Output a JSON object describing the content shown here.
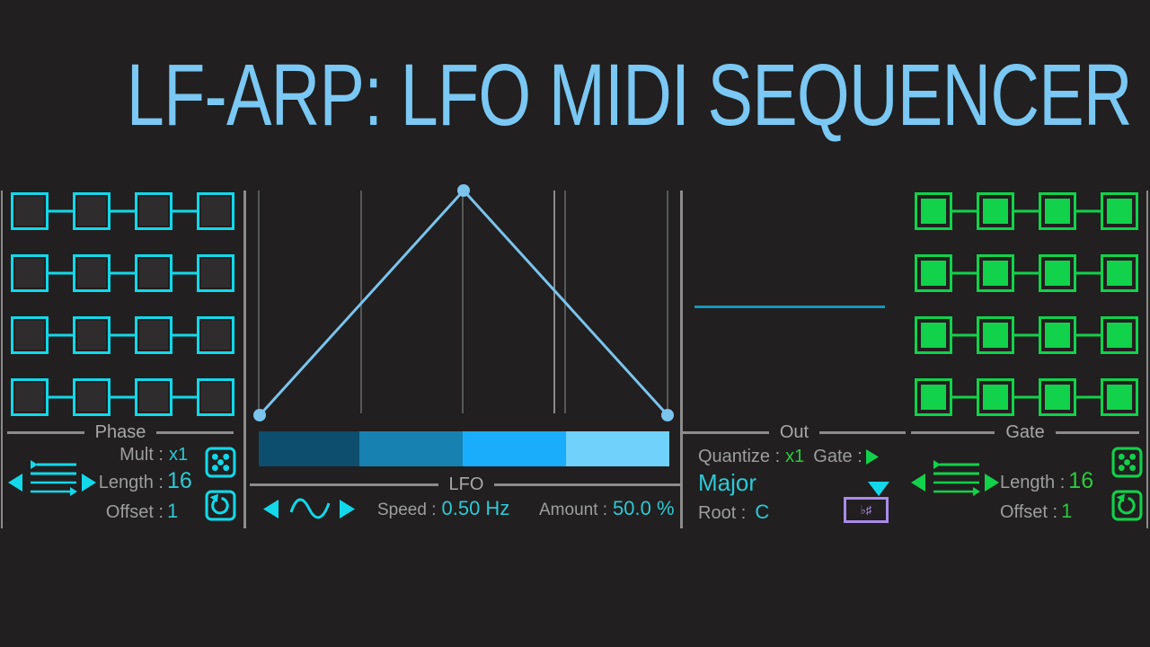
{
  "title": "LF-ARP: LFO MIDI SEQUENCER",
  "colors": {
    "bg": "#211F1F",
    "title_blue": "#7AC8F3",
    "cyan": "#12D8EA",
    "cyan_text": "#2CC9D6",
    "green": "#12D14B",
    "green_text": "#2BCB40",
    "gray_label": "#9E9E9E",
    "gray_line": "#8C8C8C",
    "grid_line": "#585858",
    "playhead_line": "#8A8A8A",
    "wave_blue": "#7AC4EE",
    "out_line": "#1895BC",
    "purple": "#A98BE8",
    "cell_off": "#2E2C2C",
    "grad_1": "#0D4D6E",
    "grad_2": "#1781B2",
    "grad_3": "#19ADFB",
    "grad_4": "#70D1FA"
  },
  "phase": {
    "header": "Phase",
    "mult_label": "Mult :",
    "mult_value": "x1",
    "length_label": "Length :",
    "length_value": "16",
    "offset_label": "Offset :",
    "offset_value": "1"
  },
  "phase_grid": {
    "rows": 4,
    "cols": 4,
    "state": "off"
  },
  "gate_grid": {
    "rows": 4,
    "cols": 4,
    "state": "on"
  },
  "lfo": {
    "header": "LFO",
    "wave_icon": "sine",
    "waveform_points": [
      [
        0,
        0
      ],
      [
        0.5,
        1
      ],
      [
        1,
        0
      ]
    ],
    "speed_label": "Speed :",
    "speed_value": "0.50 Hz",
    "amount_label": "Amount :",
    "amount_value": "50.0 %"
  },
  "out": {
    "header": "Out",
    "quantize_label": "Quantize :",
    "quantize_value": "x1",
    "gate_label": "Gate :",
    "scale_value": "Major",
    "root_label": "Root :",
    "root_value": "C",
    "accidental_label": "♭♯"
  },
  "gate": {
    "header": "Gate",
    "length_label": "Length :",
    "length_value": "16",
    "offset_label": "Offset :",
    "offset_value": "1"
  }
}
